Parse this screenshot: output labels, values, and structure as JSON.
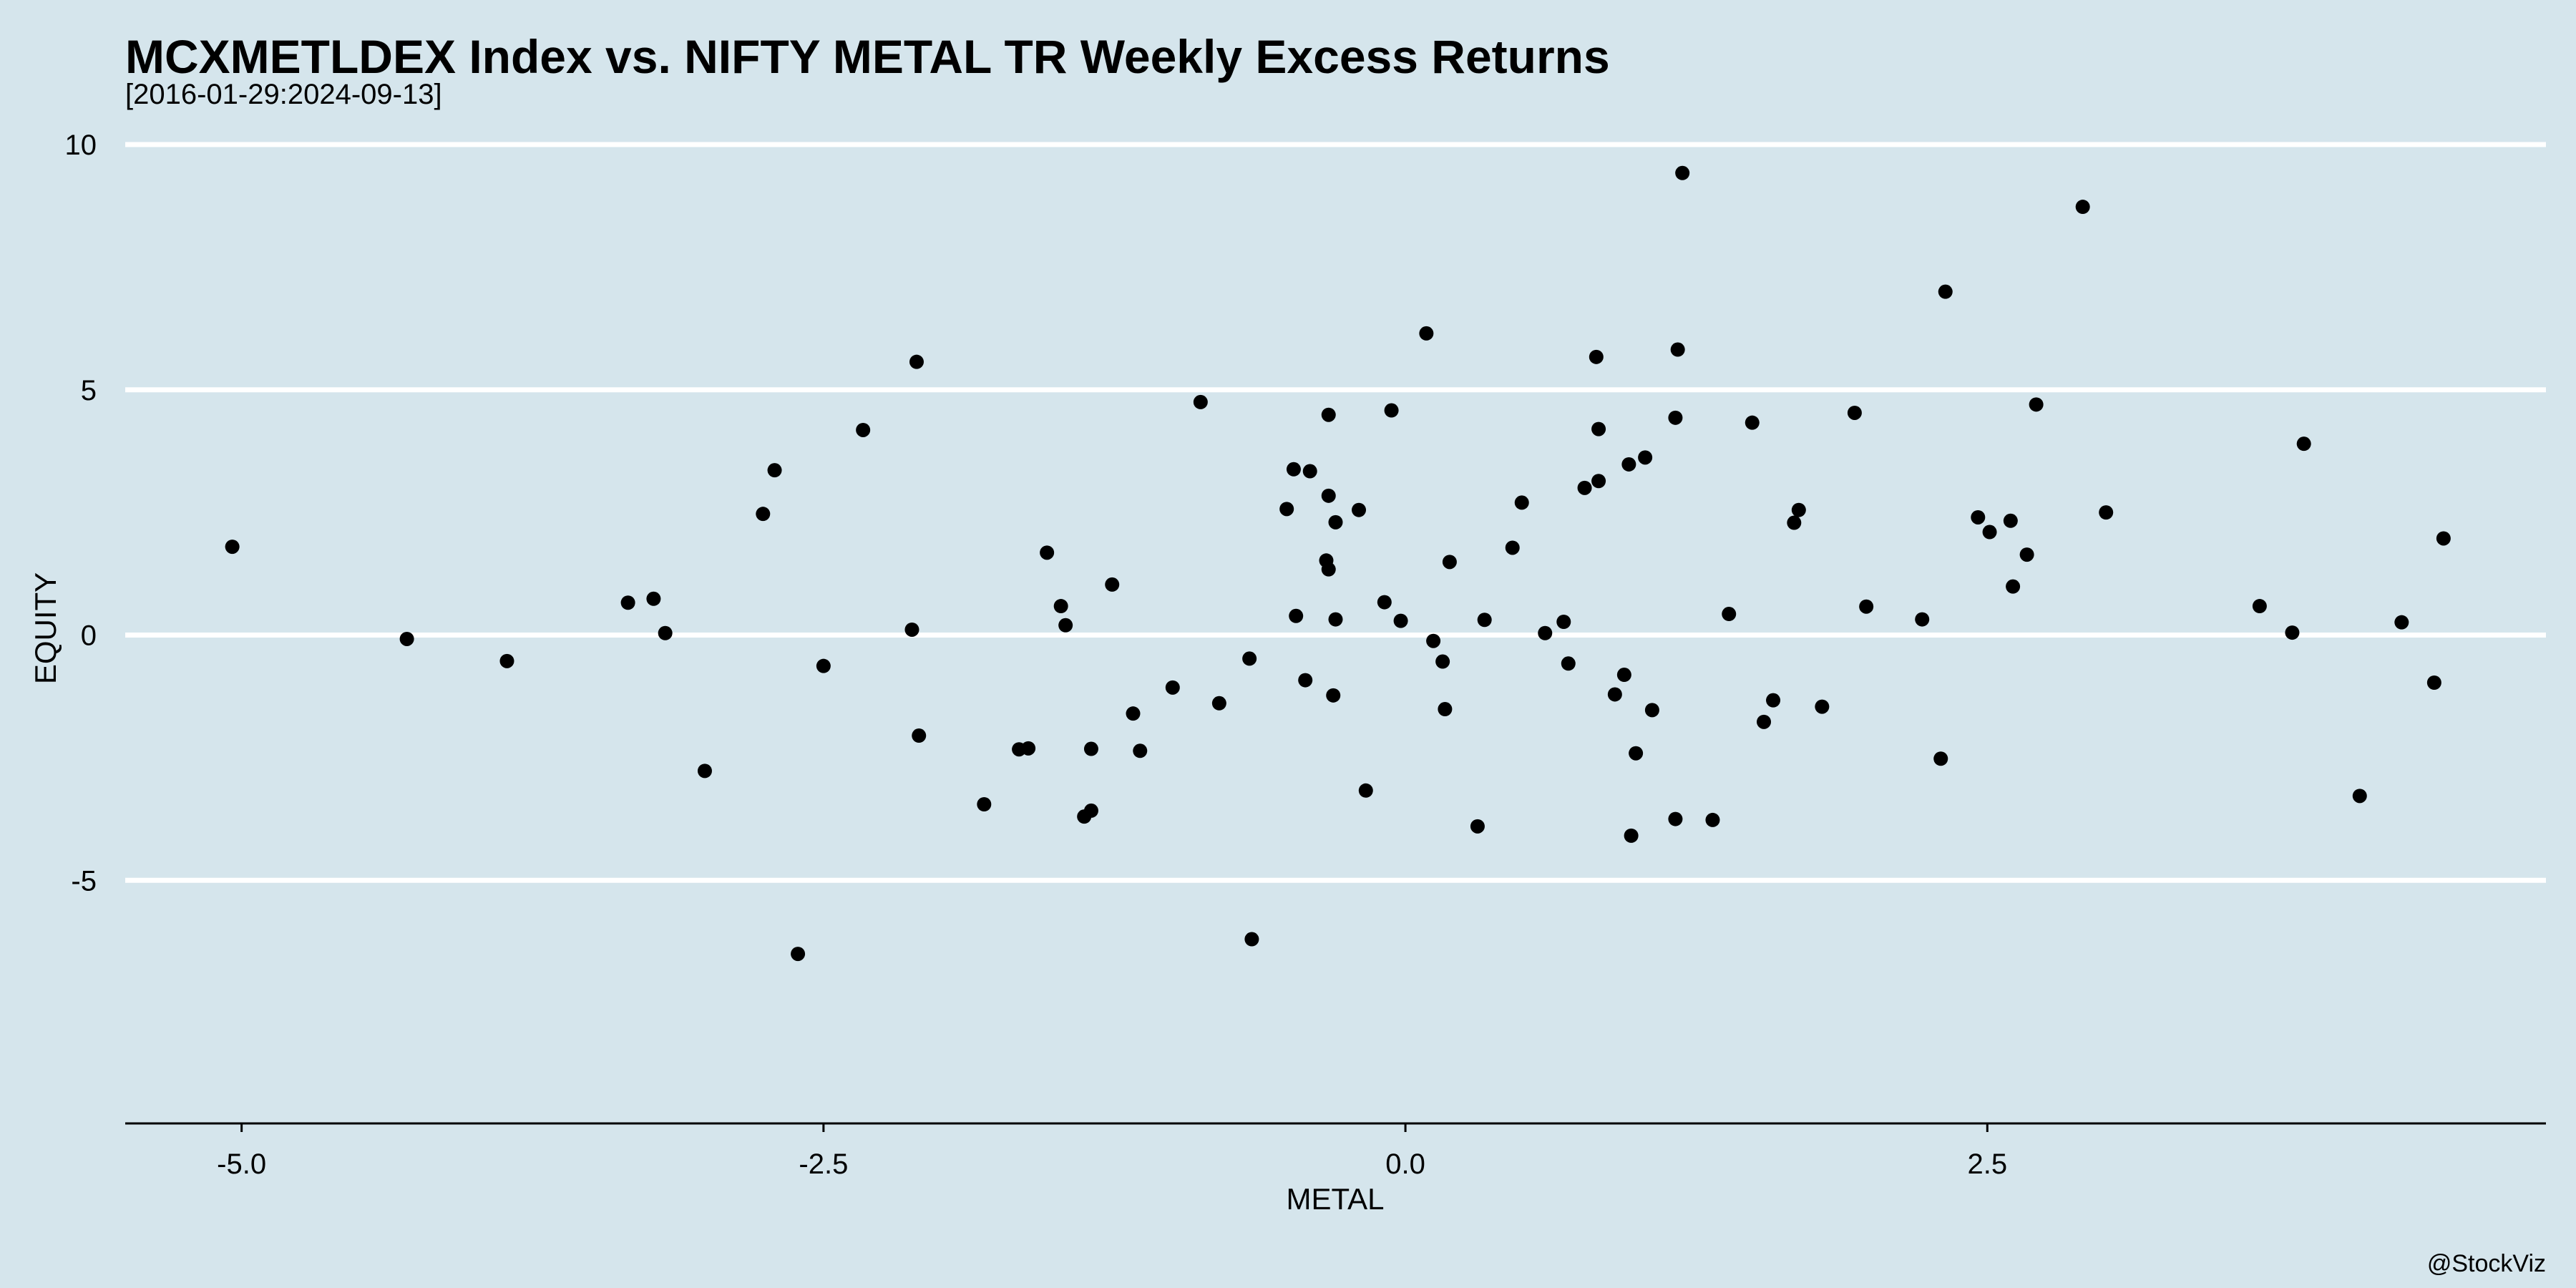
{
  "chart_data": {
    "type": "scatter",
    "title": "MCXMETLDEX Index vs. NIFTY METAL TR Weekly Excess Returns",
    "subtitle": "[2016-01-29:2024-09-13]",
    "xlabel": "METAL",
    "ylabel": "EQUITY",
    "caption": "@StockViz",
    "xlim": [
      -5.5,
      4.9
    ],
    "ylim": [
      -10.0,
      10.0
    ],
    "x_ticks": [
      -5.0,
      -2.5,
      0.0,
      2.5
    ],
    "x_tick_labels": [
      "-5.0",
      "-2.5",
      "0.0",
      "2.5"
    ],
    "y_ticks": [
      10,
      5,
      0,
      -5
    ],
    "y_tick_labels": [
      "10",
      "5",
      "0",
      "-5"
    ],
    "grid": {
      "horizontal": true,
      "vertical": false
    },
    "legend": "none",
    "colors": {
      "background": "#d5e5ec",
      "point": "#000000",
      "grid": "#ffffff"
    },
    "points": [
      [
        -5.04,
        1.8
      ],
      [
        -4.29,
        -0.08
      ],
      [
        -3.86,
        -0.53
      ],
      [
        -3.34,
        0.66
      ],
      [
        -3.23,
        0.74
      ],
      [
        -3.18,
        0.04
      ],
      [
        -3.01,
        -2.77
      ],
      [
        -2.76,
        2.47
      ],
      [
        -2.71,
        3.36
      ],
      [
        -2.61,
        -6.5
      ],
      [
        -2.5,
        -0.63
      ],
      [
        -2.33,
        4.18
      ],
      [
        -2.12,
        0.11
      ],
      [
        -2.1,
        5.57
      ],
      [
        -2.09,
        -2.05
      ],
      [
        -1.81,
        -3.45
      ],
      [
        -1.66,
        -2.33
      ],
      [
        -1.62,
        -2.31
      ],
      [
        -1.54,
        1.68
      ],
      [
        -1.48,
        0.59
      ],
      [
        -1.46,
        0.2
      ],
      [
        -1.38,
        -3.7
      ],
      [
        -1.35,
        -2.32
      ],
      [
        -1.35,
        -3.58
      ],
      [
        -1.26,
        1.03
      ],
      [
        -1.17,
        -1.6
      ],
      [
        -1.14,
        -2.36
      ],
      [
        -1.0,
        -1.07
      ],
      [
        -0.88,
        4.75
      ],
      [
        -0.8,
        -1.39
      ],
      [
        -0.67,
        -0.48
      ],
      [
        -0.66,
        -6.2
      ],
      [
        -0.51,
        2.57
      ],
      [
        -0.48,
        3.38
      ],
      [
        -0.47,
        0.39
      ],
      [
        -0.43,
        -0.92
      ],
      [
        -0.41,
        3.34
      ],
      [
        -0.34,
        1.52
      ],
      [
        -0.33,
        2.84
      ],
      [
        -0.33,
        1.34
      ],
      [
        -0.33,
        4.49
      ],
      [
        -0.31,
        -1.23
      ],
      [
        -0.3,
        2.3
      ],
      [
        -0.3,
        0.32
      ],
      [
        -0.2,
        2.55
      ],
      [
        -0.17,
        -3.17
      ],
      [
        -0.09,
        0.67
      ],
      [
        -0.06,
        4.58
      ],
      [
        -0.02,
        0.29
      ],
      [
        0.09,
        6.15
      ],
      [
        0.12,
        -0.12
      ],
      [
        0.16,
        -0.54
      ],
      [
        0.17,
        -1.51
      ],
      [
        0.19,
        1.49
      ],
      [
        0.31,
        -3.9
      ],
      [
        0.34,
        0.31
      ],
      [
        0.46,
        1.78
      ],
      [
        0.5,
        2.7
      ],
      [
        0.6,
        0.04
      ],
      [
        0.68,
        0.27
      ],
      [
        0.7,
        -0.58
      ],
      [
        0.77,
        3.0
      ],
      [
        0.82,
        5.67
      ],
      [
        0.83,
        4.2
      ],
      [
        0.83,
        3.14
      ],
      [
        0.9,
        -1.21
      ],
      [
        0.94,
        -0.81
      ],
      [
        0.96,
        3.48
      ],
      [
        0.97,
        -4.09
      ],
      [
        0.99,
        -2.41
      ],
      [
        1.03,
        3.62
      ],
      [
        1.06,
        -1.53
      ],
      [
        1.16,
        -3.75
      ],
      [
        1.16,
        4.43
      ],
      [
        1.17,
        5.82
      ],
      [
        1.19,
        9.42
      ],
      [
        1.32,
        -3.77
      ],
      [
        1.39,
        0.43
      ],
      [
        1.49,
        4.33
      ],
      [
        1.54,
        -1.77
      ],
      [
        1.58,
        -1.33
      ],
      [
        1.67,
        2.29
      ],
      [
        1.69,
        2.55
      ],
      [
        1.79,
        -1.46
      ],
      [
        1.93,
        4.53
      ],
      [
        1.98,
        0.58
      ],
      [
        2.22,
        0.32
      ],
      [
        2.3,
        -2.52
      ],
      [
        2.32,
        7.0
      ],
      [
        2.46,
        2.4
      ],
      [
        2.51,
        2.1
      ],
      [
        2.6,
        2.33
      ],
      [
        2.61,
        0.99
      ],
      [
        2.67,
        1.64
      ],
      [
        2.71,
        4.7
      ],
      [
        2.91,
        8.73
      ],
      [
        3.01,
        2.5
      ],
      [
        3.67,
        0.59
      ],
      [
        3.81,
        0.05
      ],
      [
        3.86,
        3.9
      ],
      [
        4.1,
        -3.28
      ],
      [
        4.28,
        0.26
      ],
      [
        4.42,
        -0.97
      ],
      [
        4.46,
        1.97
      ]
    ]
  }
}
